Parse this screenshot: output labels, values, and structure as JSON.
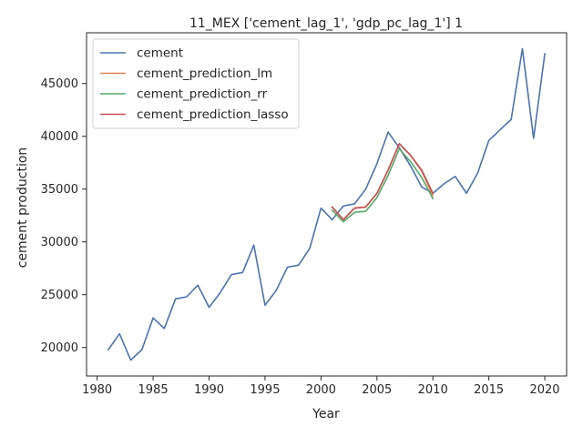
{
  "chart_data": {
    "type": "line",
    "title": "11_MEX ['cement_lag_1', 'gdp_pc_lag_1'] 1",
    "xlabel": "Year",
    "ylabel": "cement production",
    "xlim": [
      1979.05,
      2021.95
    ],
    "ylim": [
      17300,
      49800
    ],
    "xticks": [
      1980,
      1985,
      1990,
      1995,
      2000,
      2005,
      2010,
      2015,
      2020
    ],
    "yticks": [
      20000,
      25000,
      30000,
      35000,
      40000,
      45000
    ],
    "grid": false,
    "legend": "upper-left",
    "series": [
      {
        "name": "cement",
        "color": "#4c72b0",
        "x": [
          1981,
          1982,
          1983,
          1984,
          1985,
          1986,
          1987,
          1988,
          1989,
          1990,
          1991,
          1992,
          1993,
          1994,
          1995,
          1996,
          1997,
          1998,
          1999,
          2000,
          2001,
          2002,
          2003,
          2004,
          2005,
          2006,
          2007,
          2008,
          2009,
          2010,
          2011,
          2012,
          2013,
          2014,
          2015,
          2016,
          2017,
          2018,
          2019,
          2020
        ],
        "y": [
          19800,
          21300,
          18800,
          19800,
          22800,
          21800,
          24600,
          24800,
          25900,
          23800,
          25200,
          26900,
          27100,
          29700,
          24000,
          25400,
          27600,
          27800,
          29400,
          33200,
          32100,
          33400,
          33600,
          35000,
          37400,
          40400,
          38900,
          37200,
          35200,
          34600,
          35500,
          36200,
          34600,
          36500,
          39600,
          40600,
          41600,
          48300,
          39800,
          47800
        ]
      },
      {
        "name": "cement_prediction_lm",
        "color": "#dd8452",
        "x": [
          2001,
          2002,
          2003,
          2004,
          2005,
          2006,
          2007,
          2008,
          2009,
          2010
        ],
        "y": [
          33300,
          32100,
          33200,
          33300,
          34600,
          36800,
          39300,
          38200,
          36700,
          34400
        ]
      },
      {
        "name": "cement_prediction_rr",
        "color": "#55a868",
        "x": [
          2001,
          2002,
          2003,
          2004,
          2005,
          2006,
          2007,
          2008,
          2009,
          2010
        ],
        "y": [
          33000,
          31900,
          32800,
          32900,
          34200,
          36300,
          38800,
          37600,
          36100,
          34100
        ]
      },
      {
        "name": "cement_prediction_lasso",
        "color": "#c44e52",
        "x": [
          2001,
          2002,
          2003,
          2004,
          2005,
          2006,
          2007,
          2008,
          2009,
          2010
        ],
        "y": [
          33300,
          32100,
          33200,
          33300,
          34600,
          36800,
          39300,
          38200,
          36800,
          34600
        ]
      }
    ]
  }
}
